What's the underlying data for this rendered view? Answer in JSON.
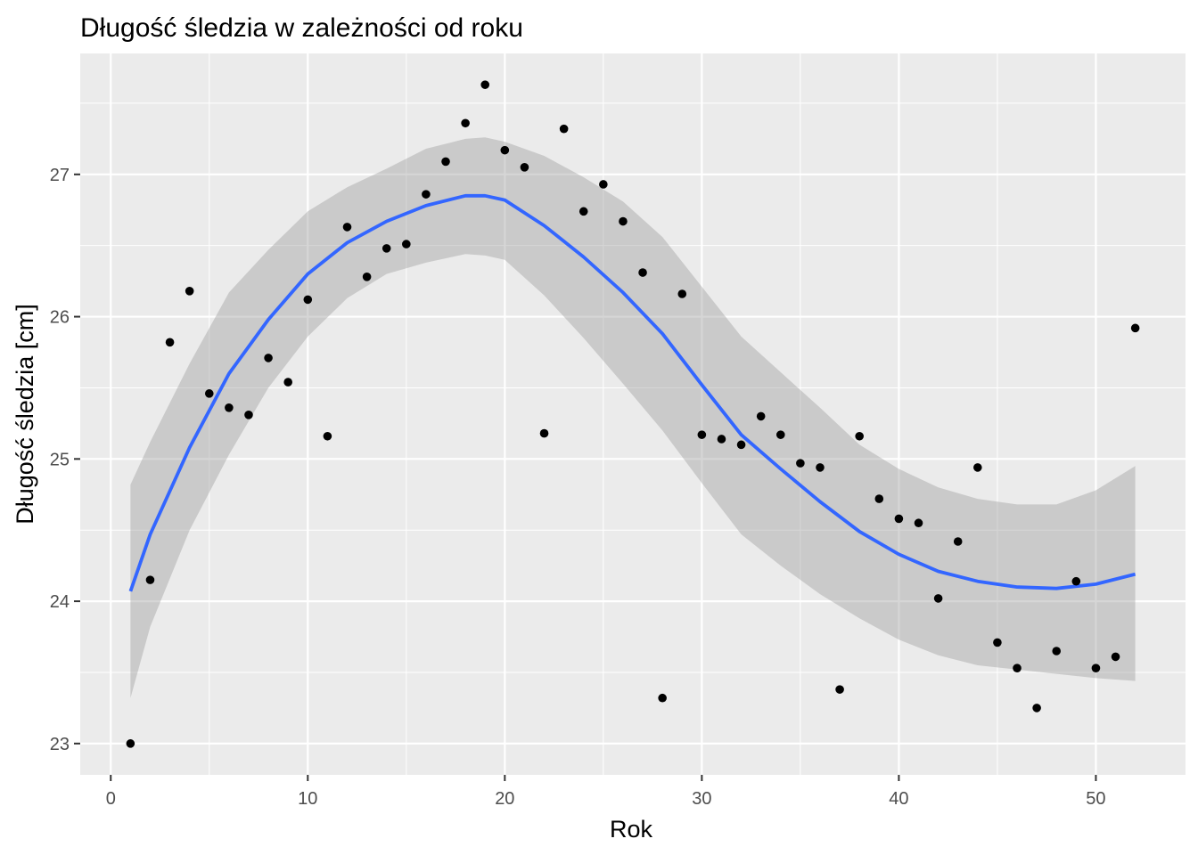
{
  "chart_data": {
    "type": "scatter",
    "title": "Długość śledzia w zależności od roku",
    "xlabel": "Rok",
    "ylabel": "Długość śledzia [cm]",
    "xlim": [
      -1.55,
      54.55
    ],
    "ylim": [
      22.78,
      27.85
    ],
    "x_ticks": [
      0,
      10,
      20,
      30,
      40,
      50
    ],
    "y_ticks": [
      23,
      24,
      25,
      26,
      27
    ],
    "x_tick_labels": [
      "0",
      "10",
      "20",
      "30",
      "40",
      "50"
    ],
    "y_tick_labels": [
      "23",
      "24",
      "25",
      "26",
      "27"
    ],
    "grid": true,
    "legend": "none",
    "colors": {
      "panel": "#EBEBEB",
      "grid_major": "#FFFFFF",
      "points": "#000000",
      "smooth_line": "#3366FF",
      "confidence_band": "#999999"
    },
    "points": {
      "x": [
        1,
        2,
        3,
        4,
        5,
        6,
        7,
        8,
        9,
        10,
        11,
        12,
        13,
        14,
        15,
        16,
        17,
        18,
        19,
        20,
        21,
        22,
        23,
        24,
        25,
        26,
        27,
        28,
        29,
        30,
        31,
        32,
        33,
        34,
        35,
        36,
        37,
        38,
        39,
        40,
        41,
        42,
        43,
        44,
        45,
        46,
        47,
        48,
        49,
        50,
        51,
        52
      ],
      "y": [
        23.0,
        24.15,
        25.82,
        26.18,
        25.46,
        25.36,
        25.31,
        25.71,
        25.54,
        26.12,
        25.16,
        26.63,
        26.28,
        26.48,
        26.51,
        26.86,
        27.09,
        27.36,
        27.63,
        27.17,
        27.05,
        25.18,
        27.32,
        26.74,
        26.93,
        26.67,
        26.31,
        23.32,
        26.16,
        25.17,
        25.14,
        25.1,
        25.3,
        25.17,
        24.97,
        24.94,
        23.38,
        25.16,
        24.72,
        24.58,
        24.55,
        24.02,
        24.42,
        24.94,
        23.71,
        23.53,
        23.25,
        23.65,
        24.14,
        23.53,
        23.61,
        25.92
      ]
    },
    "smooth": {
      "x": [
        1,
        2,
        4,
        6,
        8,
        10,
        12,
        14,
        16,
        18,
        19,
        20,
        22,
        24,
        26,
        28,
        30,
        32,
        34,
        36,
        38,
        40,
        42,
        44,
        46,
        48,
        50,
        52
      ],
      "y": [
        24.07,
        24.47,
        25.08,
        25.6,
        25.98,
        26.3,
        26.52,
        26.67,
        26.78,
        26.85,
        26.85,
        26.82,
        26.64,
        26.42,
        26.17,
        25.88,
        25.52,
        25.17,
        24.93,
        24.7,
        24.49,
        24.33,
        24.21,
        24.14,
        24.1,
        24.09,
        24.12,
        24.19
      ],
      "lower": [
        23.32,
        23.82,
        24.5,
        25.03,
        25.5,
        25.86,
        26.13,
        26.3,
        26.38,
        26.44,
        26.43,
        26.4,
        26.15,
        25.85,
        25.53,
        25.2,
        24.83,
        24.47,
        24.25,
        24.05,
        23.88,
        23.73,
        23.62,
        23.55,
        23.52,
        23.49,
        23.46,
        23.44
      ],
      "upper": [
        24.82,
        25.12,
        25.67,
        26.17,
        26.47,
        26.74,
        26.91,
        27.04,
        27.18,
        27.25,
        27.26,
        27.23,
        27.13,
        26.98,
        26.81,
        26.56,
        26.21,
        25.86,
        25.61,
        25.36,
        25.1,
        24.93,
        24.8,
        24.72,
        24.68,
        24.68,
        24.78,
        24.95
      ]
    }
  }
}
